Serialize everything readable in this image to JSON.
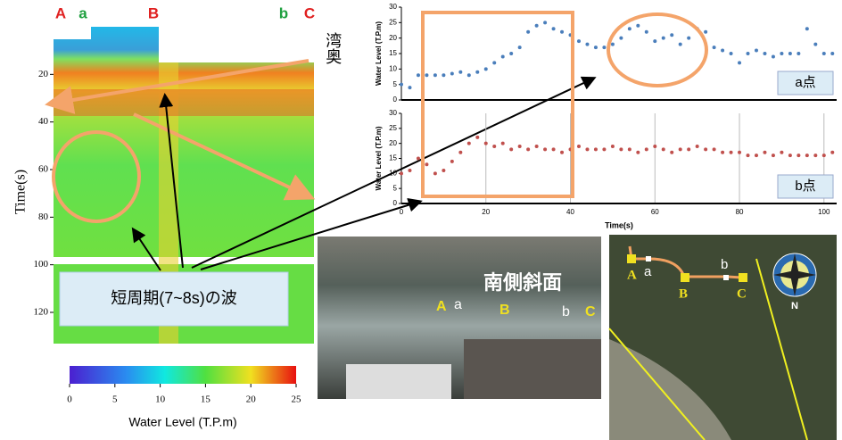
{
  "chart_data": [
    {
      "type": "heatmap",
      "ylabel": "Time(s)",
      "ylim": [
        0,
        135
      ],
      "yticks": [
        20,
        40,
        60,
        80,
        100,
        120
      ],
      "column_labels": [
        "A",
        "a",
        "B",
        "b",
        "C"
      ],
      "colorbar": {
        "label": "Water Level (T.P.m)",
        "lim": [
          0,
          25
        ],
        "ticks": [
          0,
          5,
          10,
          15,
          20,
          25
        ]
      }
    },
    {
      "type": "scatter",
      "ylabel": "Water Level (T.P.m)",
      "xlim": [
        0,
        103
      ],
      "ylim": [
        0,
        30
      ],
      "yticks": [
        0,
        5,
        10,
        15,
        20,
        25,
        30
      ],
      "x": [
        0,
        2,
        4,
        6,
        8,
        10,
        12,
        14,
        16,
        18,
        20,
        22,
        24,
        26,
        28,
        30,
        32,
        34,
        36,
        38,
        40,
        42,
        44,
        46,
        48,
        50,
        52,
        54,
        56,
        58,
        60,
        62,
        64,
        66,
        68,
        70,
        72,
        74,
        76,
        78,
        80,
        82,
        84,
        86,
        88,
        90,
        92,
        94,
        96,
        98,
        100,
        102
      ],
      "series": [
        {
          "name": "a点",
          "color": "#4a7ebb",
          "values": [
            5,
            4,
            8,
            8,
            8,
            8,
            8.5,
            9,
            8,
            9,
            10,
            12,
            14,
            15,
            17,
            22,
            24,
            25,
            23,
            22,
            21,
            19,
            18,
            17,
            17,
            18,
            20,
            23,
            24,
            22,
            19,
            20,
            21,
            18,
            20,
            23,
            22,
            17,
            16,
            15,
            12,
            15,
            16,
            15,
            14,
            15,
            15,
            15,
            23,
            18,
            15,
            15
          ]
        }
      ]
    },
    {
      "type": "scatter",
      "ylabel": "Water Level (T.P.m)",
      "xlabel": "Time(s)",
      "xlim": [
        0,
        103
      ],
      "ylim": [
        0,
        30
      ],
      "yticks": [
        0,
        5,
        10,
        15,
        20,
        25,
        30
      ],
      "xticks": [
        0,
        20,
        40,
        60,
        80,
        100
      ],
      "x": [
        0,
        2,
        4,
        6,
        8,
        10,
        12,
        14,
        16,
        18,
        20,
        22,
        24,
        26,
        28,
        30,
        32,
        34,
        36,
        38,
        40,
        42,
        44,
        46,
        48,
        50,
        52,
        54,
        56,
        58,
        60,
        62,
        64,
        66,
        68,
        70,
        72,
        74,
        76,
        78,
        80,
        82,
        84,
        86,
        88,
        90,
        92,
        94,
        96,
        98,
        100,
        102
      ],
      "series": [
        {
          "name": "b点",
          "color": "#c0504d",
          "values": [
            10,
            11,
            15,
            13,
            10,
            11,
            14,
            17,
            20,
            22,
            20,
            19,
            20,
            18,
            19,
            18,
            19,
            18,
            18,
            17,
            18,
            19,
            18,
            18,
            18,
            19,
            18,
            18,
            17,
            18,
            19,
            18,
            17,
            18,
            18,
            19,
            18,
            18,
            17,
            17,
            17,
            16,
            16,
            17,
            16,
            17,
            16,
            16,
            16,
            16,
            16,
            17
          ]
        }
      ]
    }
  ],
  "annotations": {
    "bay": "湾奥",
    "callout": "短周期(7~8s)の波",
    "slope": "南側斜面"
  },
  "photo_labels": [
    "A",
    "a",
    "B",
    "b",
    "C"
  ],
  "map_labels": [
    "A",
    "a",
    "B",
    "b",
    "C",
    "N"
  ]
}
